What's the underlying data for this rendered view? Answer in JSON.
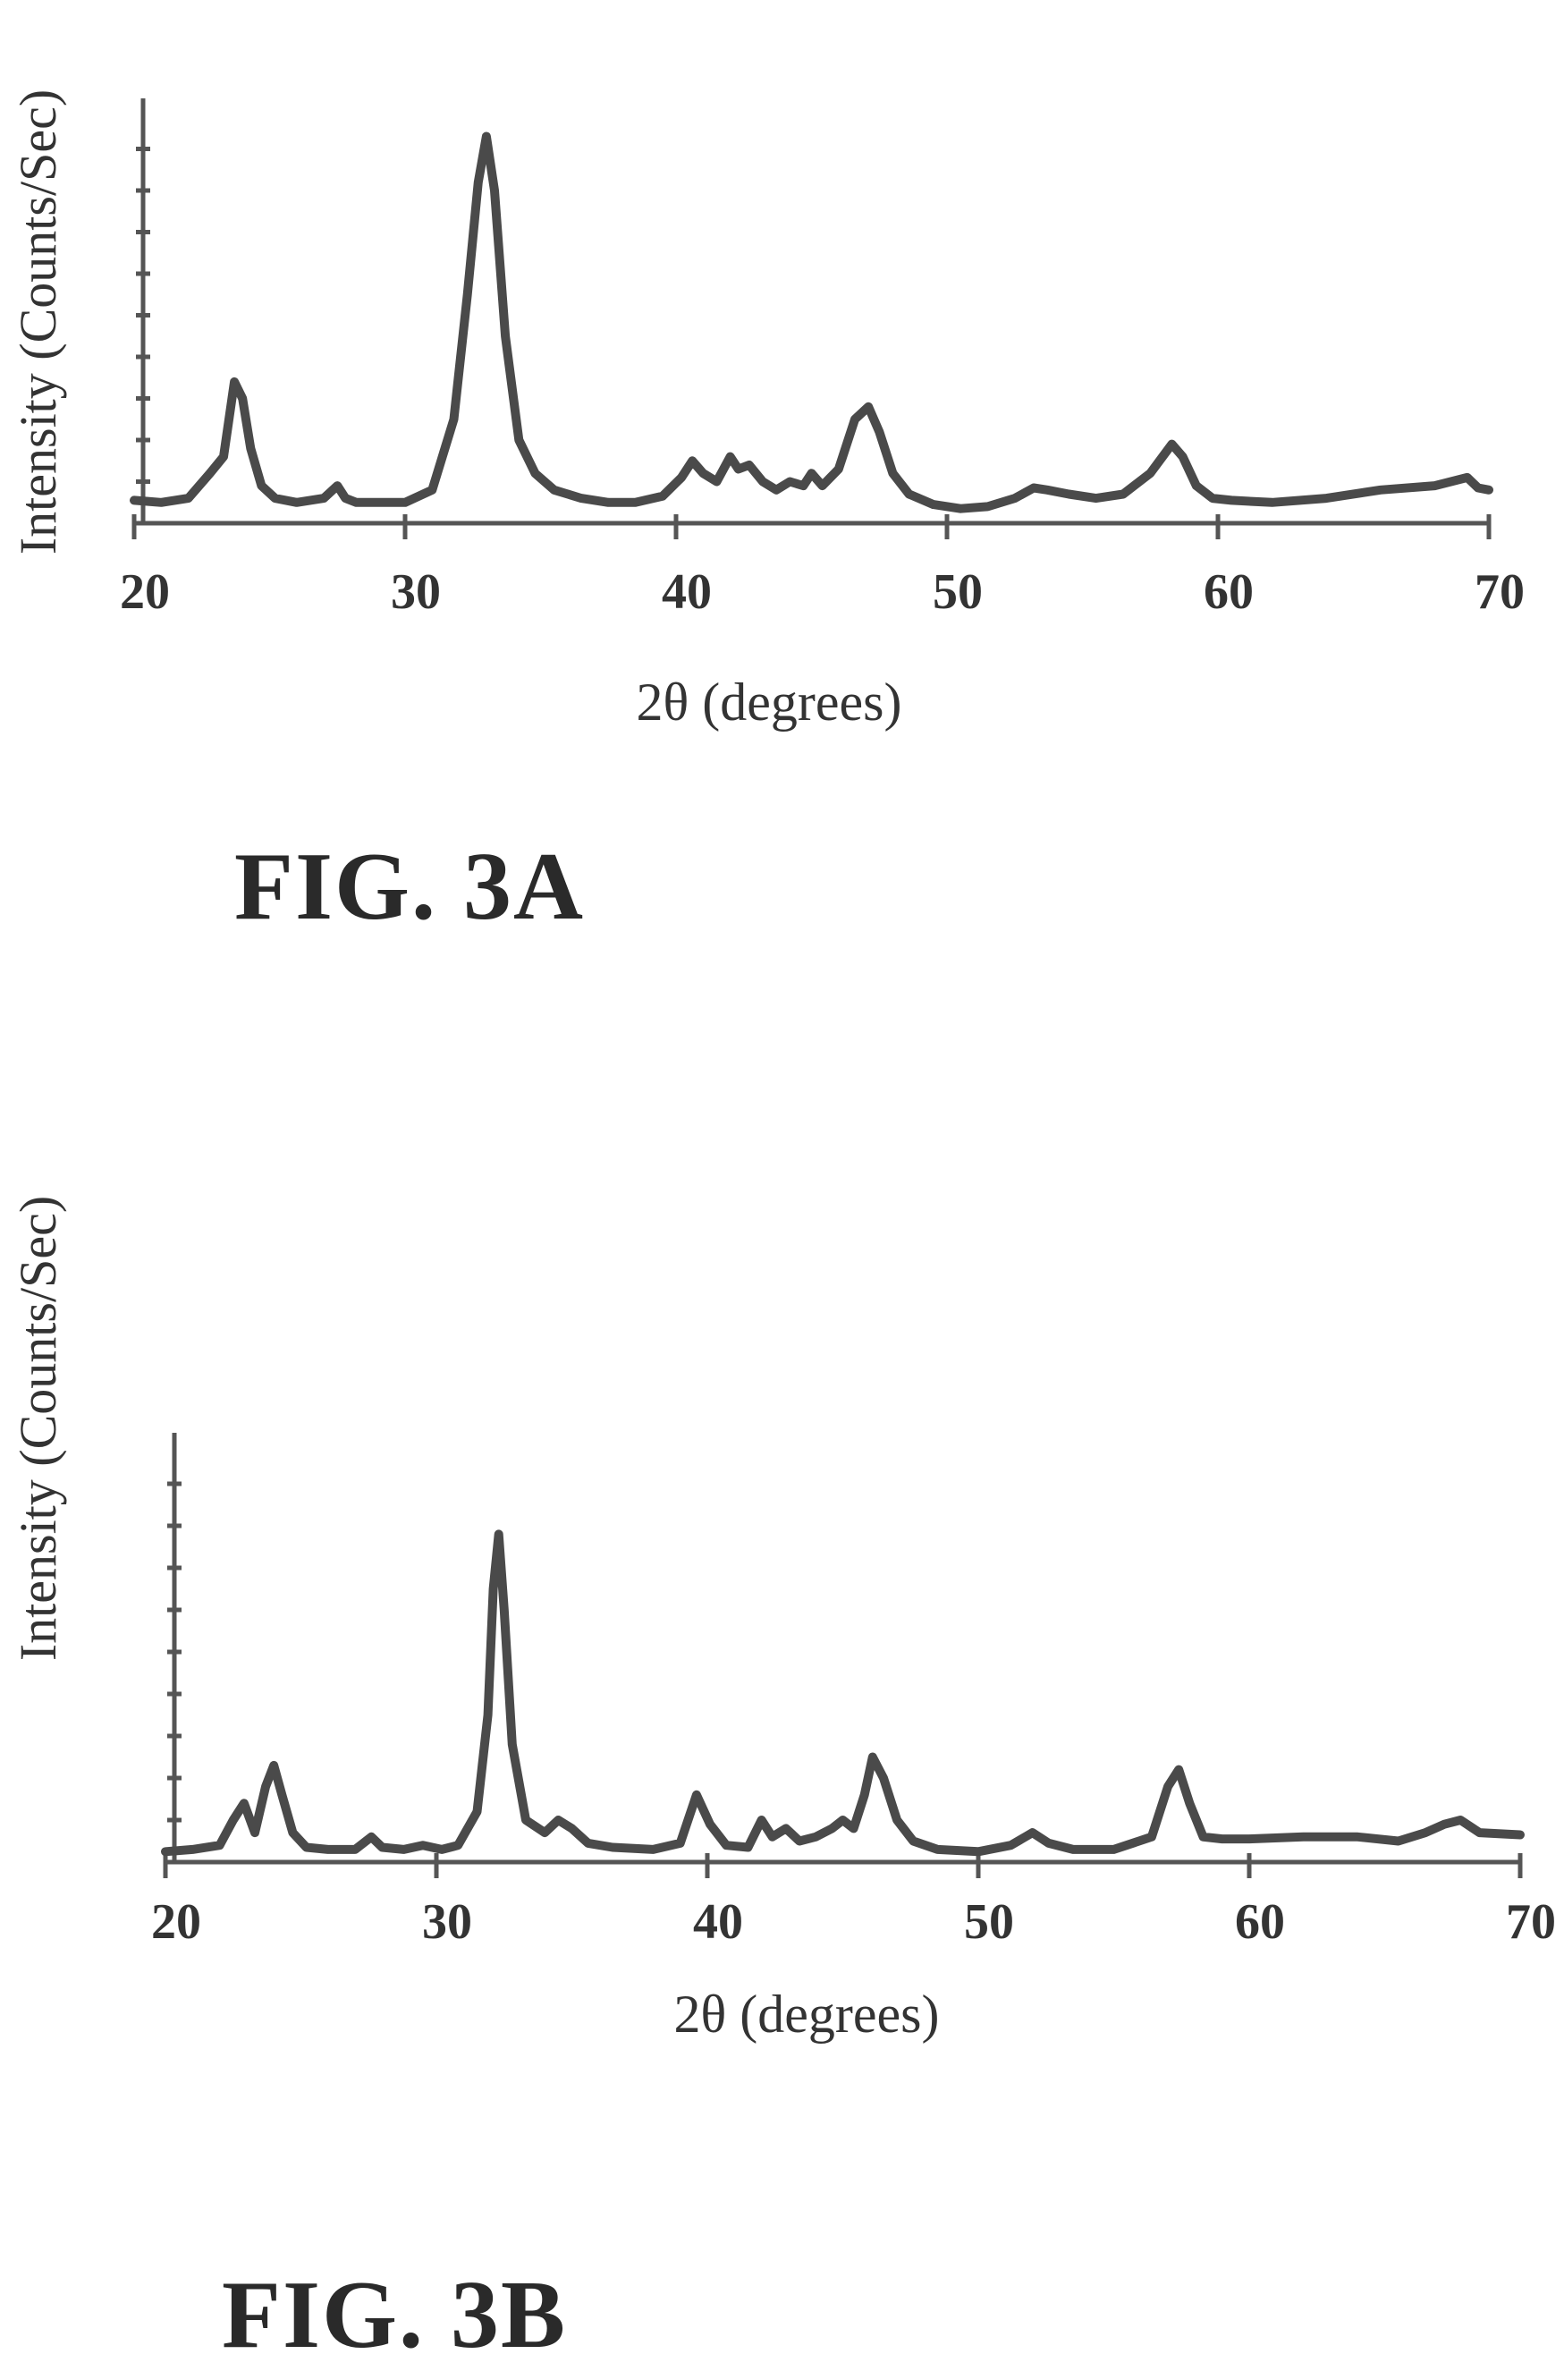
{
  "chart_data": [
    {
      "type": "line",
      "figure_label": "FIG. 3A",
      "xlabel": "2θ (degrees)",
      "ylabel": "Intensity (Counts/Sec)",
      "xlim": [
        20,
        70
      ],
      "ylim": [
        0,
        10
      ],
      "xticks": [
        20,
        30,
        40,
        50,
        60,
        70
      ],
      "yticks": [
        1,
        2,
        3,
        4,
        5,
        6,
        7,
        8,
        9
      ],
      "grid": false,
      "series": [
        {
          "x": [
            20,
            21,
            22,
            22.8,
            23.3,
            23.7,
            24.0,
            24.3,
            24.7,
            25.2,
            26,
            27,
            27.5,
            27.8,
            28.2,
            29,
            30,
            31,
            31.8,
            32.3,
            32.7,
            33.0,
            33.3,
            33.7,
            34.2,
            34.8,
            35.5,
            36.5,
            37.5,
            38.5,
            39.5,
            40.2,
            40.6,
            41.0,
            41.5,
            42.0,
            42.3,
            42.7,
            43.2,
            43.7,
            44.2,
            44.7,
            45.0,
            45.4,
            46.0,
            46.6,
            47.1,
            47.5,
            48.0,
            48.6,
            49.5,
            50.5,
            51.5,
            52.5,
            53.2,
            53.7,
            54.5,
            55.5,
            56.5,
            57.5,
            58.3,
            58.7,
            59.2,
            59.8,
            60.5,
            62,
            64,
            66,
            68,
            69.2,
            69.6,
            70
          ],
          "y": [
            0.55,
            0.5,
            0.6,
            1.2,
            1.6,
            3.4,
            3.0,
            1.8,
            0.9,
            0.6,
            0.5,
            0.6,
            0.9,
            0.6,
            0.5,
            0.5,
            0.5,
            0.8,
            2.5,
            5.5,
            8.2,
            9.3,
            8.0,
            4.5,
            2.0,
            1.2,
            0.8,
            0.6,
            0.5,
            0.5,
            0.65,
            1.1,
            1.5,
            1.2,
            1.0,
            1.6,
            1.3,
            1.4,
            1.0,
            0.8,
            1.0,
            0.9,
            1.2,
            0.9,
            1.3,
            2.5,
            2.8,
            2.2,
            1.2,
            0.7,
            0.45,
            0.35,
            0.4,
            0.6,
            0.85,
            0.8,
            0.7,
            0.6,
            0.7,
            1.2,
            1.9,
            1.6,
            0.9,
            0.6,
            0.55,
            0.5,
            0.6,
            0.8,
            0.9,
            1.1,
            0.85,
            0.8
          ]
        }
      ]
    },
    {
      "type": "line",
      "figure_label": "FIG. 3B",
      "xlabel": "2θ (degrees)",
      "ylabel": "Intensity (Counts/Sec)",
      "xlim": [
        20,
        70
      ],
      "ylim": [
        0,
        10
      ],
      "xticks": [
        20,
        30,
        40,
        50,
        60,
        70
      ],
      "yticks": [
        1,
        2,
        3,
        4,
        5,
        6,
        7,
        8,
        9
      ],
      "grid": false,
      "series": [
        {
          "x": [
            20,
            21,
            22,
            22.5,
            22.9,
            23.3,
            23.7,
            24.0,
            24.3,
            24.7,
            25.2,
            26,
            27,
            27.6,
            28,
            28.8,
            29.5,
            30.2,
            30.8,
            31.5,
            31.9,
            32.1,
            32.3,
            32.5,
            32.8,
            33.3,
            34,
            34.5,
            35,
            35.6,
            36.5,
            38,
            39,
            39.6,
            40.1,
            40.7,
            41.5,
            42.0,
            42.4,
            42.9,
            43.4,
            44,
            44.6,
            45.0,
            45.4,
            45.8,
            46.1,
            46.5,
            47.0,
            47.6,
            48.5,
            50,
            51.2,
            52.0,
            52.6,
            53.5,
            55,
            56.4,
            57.0,
            57.4,
            57.8,
            58.3,
            59,
            60,
            62,
            64,
            65.5,
            66.5,
            67.2,
            67.8,
            68.5,
            70
          ],
          "y": [
            0.25,
            0.3,
            0.4,
            1.0,
            1.4,
            0.7,
            1.8,
            2.3,
            1.6,
            0.7,
            0.35,
            0.3,
            0.3,
            0.6,
            0.35,
            0.3,
            0.4,
            0.3,
            0.4,
            1.2,
            3.5,
            6.5,
            7.8,
            6.0,
            2.8,
            1.0,
            0.7,
            1.0,
            0.8,
            0.45,
            0.35,
            0.3,
            0.45,
            1.6,
            0.9,
            0.4,
            0.35,
            1.0,
            0.6,
            0.8,
            0.5,
            0.6,
            0.8,
            1.0,
            0.8,
            1.6,
            2.5,
            2.0,
            1.0,
            0.5,
            0.3,
            0.25,
            0.4,
            0.7,
            0.45,
            0.3,
            0.3,
            0.6,
            1.8,
            2.2,
            1.4,
            0.6,
            0.55,
            0.55,
            0.6,
            0.6,
            0.5,
            0.7,
            0.9,
            1.0,
            0.7,
            0.65
          ]
        }
      ]
    }
  ]
}
